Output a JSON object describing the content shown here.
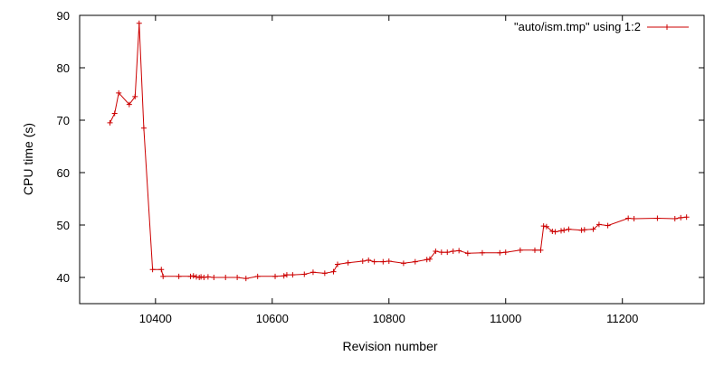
{
  "chart_data": {
    "type": "line",
    "xlabel": "Revision number",
    "ylabel": "CPU time (s)",
    "xlim": [
      10270,
      11340
    ],
    "ylim": [
      35,
      90
    ],
    "x_ticks": [
      10400,
      10600,
      10800,
      11000,
      11200
    ],
    "y_ticks": [
      40,
      50,
      60,
      70,
      80,
      90
    ],
    "grid": false,
    "legend_position": "top-right",
    "series": [
      {
        "name": "\"auto/ism.tmp\" using 1:2",
        "color": "#cc0000",
        "marker": "plus",
        "x": [
          10322,
          10330,
          10337,
          10355,
          10365,
          10372,
          10380,
          10395,
          10410,
          10413,
          10440,
          10460,
          10465,
          10470,
          10475,
          10478,
          10483,
          10490,
          10500,
          10520,
          10540,
          10555,
          10575,
          10605,
          10620,
          10625,
          10635,
          10655,
          10670,
          10690,
          10705,
          10712,
          10730,
          10755,
          10765,
          10775,
          10790,
          10800,
          10825,
          10845,
          10865,
          10870,
          10880,
          10890,
          10900,
          10910,
          10920,
          10935,
          10960,
          10990,
          11000,
          11025,
          11050,
          11060,
          11065,
          11070,
          11080,
          11085,
          11095,
          11100,
          11108,
          11130,
          11135,
          11150,
          11160,
          11175,
          11210,
          11220,
          11260,
          11290,
          11300,
          11310
        ],
        "y": [
          69.5,
          71.3,
          75.2,
          73.0,
          74.5,
          88.5,
          68.5,
          41.5,
          41.5,
          40.2,
          40.2,
          40.2,
          40.3,
          40.1,
          40.0,
          40.1,
          40.0,
          40.1,
          40.0,
          40.0,
          40.0,
          39.8,
          40.2,
          40.2,
          40.3,
          40.5,
          40.5,
          40.6,
          41.0,
          40.8,
          41.1,
          42.5,
          42.8,
          43.1,
          43.3,
          43.0,
          43.0,
          43.1,
          42.7,
          43.0,
          43.4,
          43.5,
          45.0,
          44.8,
          44.8,
          45.0,
          45.1,
          44.6,
          44.7,
          44.7,
          44.8,
          45.2,
          45.2,
          45.2,
          49.8,
          49.7,
          48.8,
          48.7,
          48.9,
          49.0,
          49.2,
          49.0,
          49.1,
          49.2,
          50.1,
          49.9,
          51.3,
          51.2,
          51.3,
          51.2,
          51.4,
          51.5
        ]
      }
    ]
  }
}
